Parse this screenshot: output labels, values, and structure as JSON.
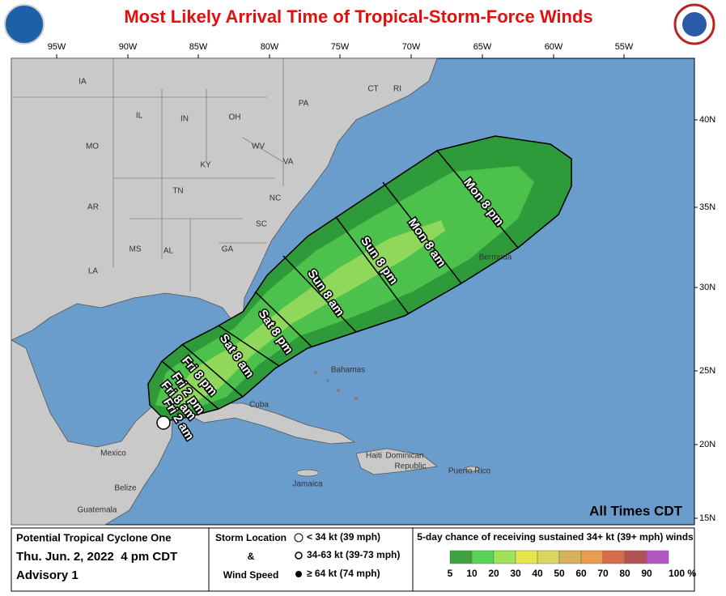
{
  "header": {
    "title": "Most Likely Arrival Time of Tropical-Storm-Force Winds"
  },
  "map": {
    "lon_labels": [
      "95W",
      "90W",
      "85W",
      "80W",
      "75W",
      "70W",
      "65W",
      "60W",
      "55W"
    ],
    "lat_labels": [
      "40N",
      "35N",
      "30N",
      "25N",
      "20N",
      "15N"
    ],
    "places": [
      "IA",
      "IL",
      "IN",
      "OH",
      "PA",
      "MO",
      "KY",
      "WV",
      "VA",
      "TN",
      "NC",
      "AR",
      "SC",
      "MS",
      "AL",
      "GA",
      "LA",
      "CT",
      "RI",
      "Bahamas",
      "Cuba",
      "Haiti",
      "Dominican",
      "Republic",
      "Jamaica",
      "Puerto Rico",
      "Bermuda",
      "Mexico",
      "Belize",
      "Guatemala"
    ],
    "time_labels": [
      "Mon 8 pm",
      "Mon 8 am",
      "Sun 8 pm",
      "Sun 8 am",
      "Sat 8 pm",
      "Sat 8 am",
      "Fri 8 pm",
      "Fri 2 pm",
      "Fri 8 am",
      "Fri 2 am"
    ],
    "note": "All Times CDT"
  },
  "legend": {
    "storm_name": "Potential Tropical Cyclone One",
    "date": "Thu. Jun. 2, 2022  4 pm CDT",
    "advisory": "Advisory 1",
    "storm_location": "Storm Location",
    "amp": "&",
    "wind_speed": "Wind Speed",
    "symbols": [
      "< 34 kt (39 mph)",
      "34-63 kt (39-73 mph)",
      "≥ 64 kt (74 mph)"
    ],
    "colorbar_title": "5-day chance of receiving sustained 34+ kt (39+ mph) winds",
    "colorbar_labels": [
      "5",
      "10",
      "20",
      "30",
      "40",
      "50",
      "60",
      "70",
      "80",
      "90",
      "100 %"
    ],
    "colorbar_colors": [
      "#3ea23e",
      "#58d458",
      "#9ee45a",
      "#e6e64c",
      "#d8d65e",
      "#d6b15c",
      "#ea9a4c",
      "#d86a4c",
      "#b25252",
      "#b455c4"
    ]
  }
}
